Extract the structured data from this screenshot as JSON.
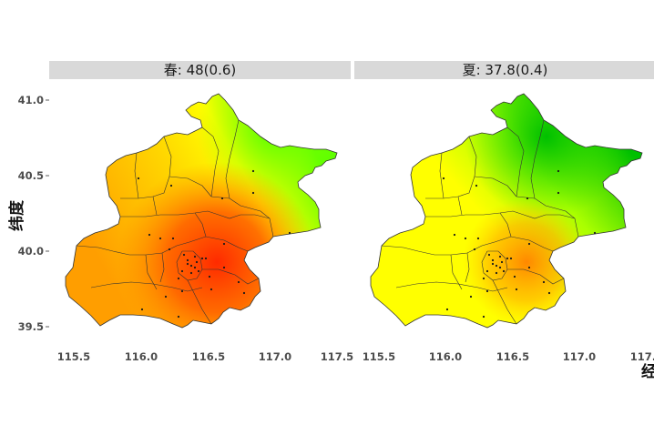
{
  "panels": [
    {
      "strip_label": "春: 48(0.6)",
      "season": "春",
      "mean": 48,
      "sd": 0.6,
      "scheme": "spring"
    },
    {
      "strip_label": "夏: 37.8(0.4)",
      "season": "夏",
      "mean": 37.8,
      "sd": 0.4,
      "scheme": "summer"
    }
  ],
  "axes": {
    "y_title": "纬度",
    "x_title": "经",
    "x_ticks": [
      "115.5",
      "116.0",
      "116.5",
      "117.0",
      "117.5"
    ],
    "x_tick_values": [
      115.5,
      116.0,
      116.5,
      117.0,
      117.5
    ],
    "y_ticks": [
      "41.0",
      "40.5",
      "40.0",
      "39.5"
    ],
    "y_tick_values": [
      41.0,
      40.5,
      40.0,
      39.5
    ],
    "x_range": [
      115.4,
      117.5
    ],
    "y_range": [
      39.45,
      41.05
    ]
  },
  "colors": {
    "strip_bg": "#d9d9d9",
    "boundary": "#333333",
    "station": "#1a1a1a",
    "high": "#ff2a00",
    "mid_high": "#ffa000",
    "mid": "#ffff00",
    "low": "#00c400"
  }
}
